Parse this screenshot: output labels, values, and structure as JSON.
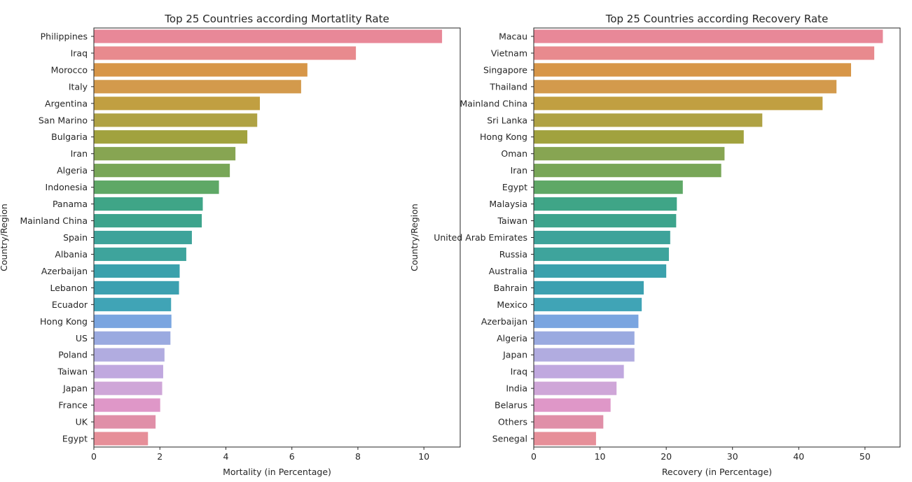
{
  "chart_data": [
    {
      "type": "bar",
      "orientation": "horizontal",
      "title": "Top 25 Countries according Mortatlity Rate",
      "xlabel": "Mortality (in Percentage)",
      "ylabel": "Country/Region",
      "xlim": [
        0,
        11.1
      ],
      "xticks": [
        0,
        2,
        4,
        6,
        8,
        10
      ],
      "xtick_labels": [
        "0",
        "2",
        "4",
        "6",
        "8",
        "10"
      ],
      "grid": false,
      "categories": [
        "Philippines",
        "Iraq",
        "Morocco",
        "Italy",
        "Argentina",
        "San Marino",
        "Bulgaria",
        "Iran",
        "Algeria",
        "Indonesia",
        "Panama",
        "Mainland China",
        "Spain",
        "Albania",
        "Azerbaijan",
        "Lebanon",
        "Ecuador",
        "Hong Kong",
        "US",
        "Poland",
        "Taiwan",
        "Japan",
        "France",
        "UK",
        "Egypt"
      ],
      "values": [
        10.55,
        7.94,
        6.47,
        6.28,
        5.03,
        4.95,
        4.65,
        4.29,
        4.12,
        3.79,
        3.3,
        3.27,
        2.97,
        2.8,
        2.6,
        2.58,
        2.34,
        2.35,
        2.32,
        2.14,
        2.1,
        2.07,
        2.01,
        1.87,
        1.64
      ],
      "colors": [
        "#e88898",
        "#e88a8e",
        "#d79648",
        "#d39a4c",
        "#c19f41",
        "#afa244",
        "#a1a23e",
        "#87a552",
        "#78a657",
        "#5fa866",
        "#3fa587",
        "#3da48c",
        "#3ea39a",
        "#3ea49c",
        "#3ba1ac",
        "#3ca0b0",
        "#40a4b6",
        "#7aa5e0",
        "#9aaae0",
        "#b1ace0",
        "#c0a8df",
        "#cfa6d8",
        "#df97c8",
        "#e08fa8",
        "#e68f99"
      ]
    },
    {
      "type": "bar",
      "orientation": "horizontal",
      "title": "Top 25 Countries according Recovery Rate",
      "xlabel": "Recovery (in Percentage)",
      "ylabel": "Country/Region",
      "xlim": [
        0,
        55.3
      ],
      "xticks": [
        0,
        10,
        20,
        30,
        40,
        50
      ],
      "xtick_labels": [
        "0",
        "10",
        "20",
        "30",
        "40",
        "50"
      ],
      "grid": false,
      "categories": [
        "Macau",
        "Vietnam",
        "Singapore",
        "Thailand",
        "Mainland China",
        "Sri Lanka",
        "Hong Kong",
        "Oman",
        "Iran",
        "Egypt",
        "Malaysia",
        "Taiwan",
        "United Arab Emirates",
        "Russia",
        "Australia",
        "Bahrain",
        "Mexico",
        "Azerbaijan",
        "Algeria",
        "Japan",
        "Iraq",
        "India",
        "Belarus",
        "Others",
        "Senegal"
      ],
      "values": [
        52.7,
        51.4,
        47.9,
        45.7,
        43.6,
        34.5,
        31.7,
        28.8,
        28.3,
        22.5,
        21.6,
        21.5,
        20.6,
        20.4,
        20.0,
        16.6,
        16.3,
        15.8,
        15.2,
        15.2,
        13.6,
        12.5,
        11.6,
        10.5,
        9.4
      ],
      "colors": [
        "#e88898",
        "#e88a8e",
        "#d79648",
        "#d39a4c",
        "#c19f41",
        "#afa244",
        "#a1a23e",
        "#87a552",
        "#78a657",
        "#5fa866",
        "#3fa587",
        "#3da48c",
        "#3ea39a",
        "#3ea49c",
        "#3ba1ac",
        "#3ca0b0",
        "#40a4b6",
        "#7aa5e0",
        "#9aaae0",
        "#b1ace0",
        "#c0a8df",
        "#cfa6d8",
        "#df97c8",
        "#e08fa8",
        "#e68f99"
      ]
    }
  ]
}
